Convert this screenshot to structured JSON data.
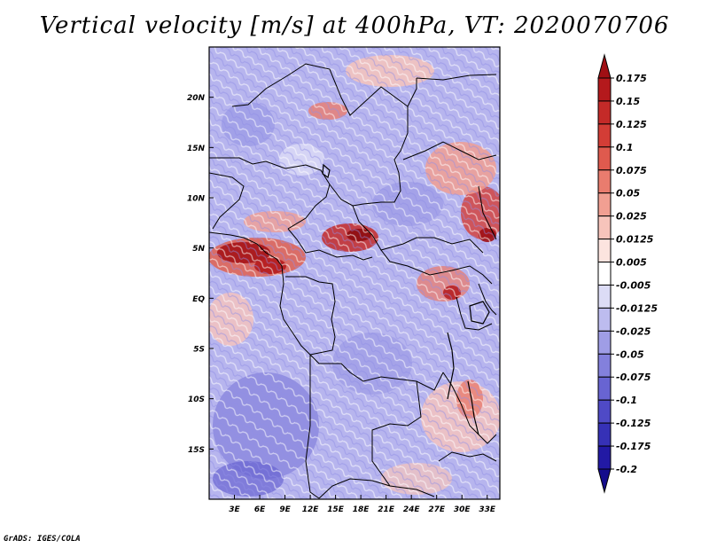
{
  "title": "Vertical velocity [m/s] at 400hPa, VT: 2020070706",
  "credit": "GrADS: IGES/COLA",
  "map": {
    "lat_labels": [
      "20N",
      "15N",
      "10N",
      "5N",
      "EQ",
      "5S",
      "10S",
      "15S"
    ],
    "lat_values": [
      20,
      15,
      10,
      5,
      0,
      -5,
      -10,
      -15
    ],
    "lon_labels": [
      "3E",
      "6E",
      "9E",
      "12E",
      "15E",
      "18E",
      "21E",
      "24E",
      "27E",
      "30E",
      "33E"
    ],
    "lon_values": [
      3,
      6,
      9,
      12,
      15,
      18,
      21,
      24,
      27,
      30,
      33
    ],
    "lon_range": [
      0,
      34.5
    ],
    "lat_range": [
      -20,
      25
    ]
  },
  "colorbar": {
    "labels": [
      "0.175",
      "0.15",
      "0.125",
      "0.1",
      "0.075",
      "0.05",
      "0.025",
      "0.0125",
      "0.005",
      "-0.005",
      "-0.0125",
      "-0.025",
      "-0.05",
      "-0.075",
      "-0.1",
      "-0.125",
      "-0.175",
      "-0.2"
    ],
    "colors": [
      "#a00f14",
      "#b4191c",
      "#c42a28",
      "#d33d36",
      "#df5a4e",
      "#e97c6e",
      "#f19f92",
      "#f7c4bb",
      "#fce4df",
      "#ffffff",
      "#dcdcf6",
      "#bdbcef",
      "#9f9de6",
      "#8380dc",
      "#6864d2",
      "#4f4ac6",
      "#3631b6",
      "#2219a4",
      "#140c8c"
    ]
  }
}
